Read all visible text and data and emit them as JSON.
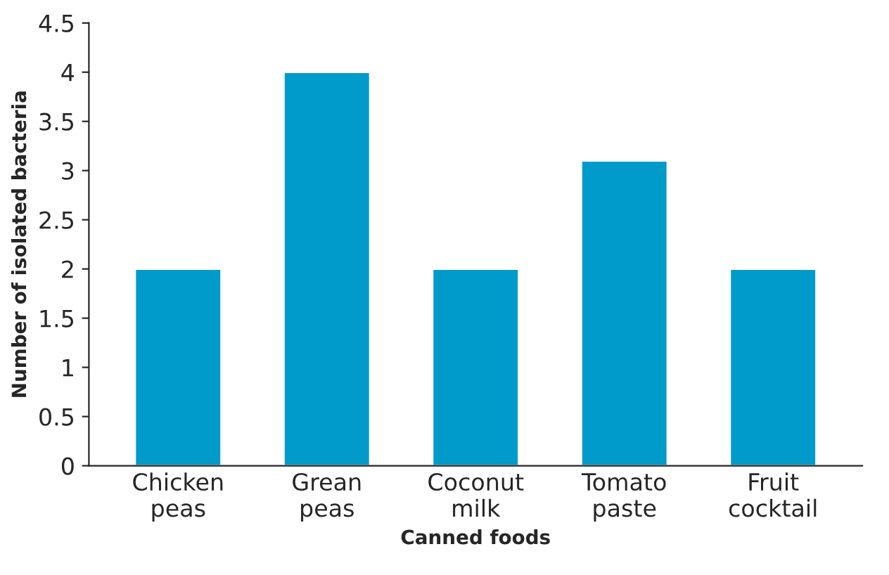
{
  "chart_data": {
    "type": "bar",
    "xlabel": "Canned foods",
    "ylabel": "Number of isolated bacteria",
    "categories": [
      "Chicken\npeas",
      "Grean\npeas",
      "Coconut\nmilk",
      "Tomato\npaste",
      "Fruit\ncocktail"
    ],
    "values": [
      2,
      4,
      2,
      3.1,
      2
    ],
    "color": "#009bcb",
    "ylim": [
      0,
      4.5
    ],
    "yticks": [
      0,
      0.5,
      1,
      1.5,
      2,
      2.5,
      3,
      3.5,
      4,
      4.5
    ],
    "grid": false,
    "legend": false
  }
}
